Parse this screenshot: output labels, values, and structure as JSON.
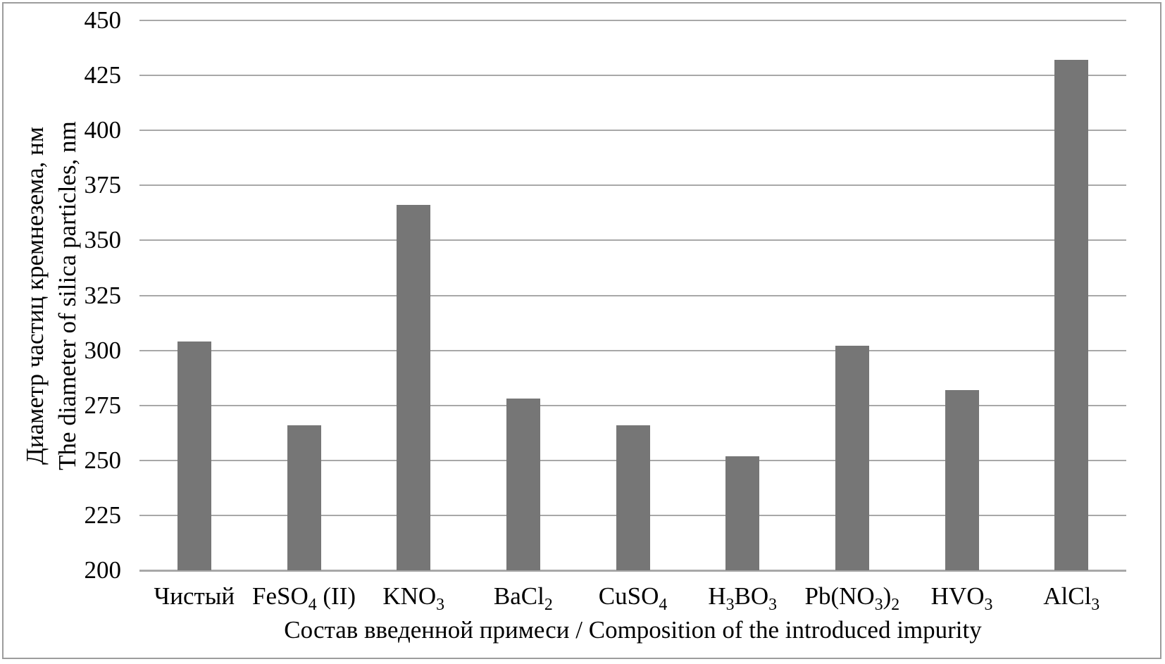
{
  "chart_data": {
    "type": "bar",
    "title": "",
    "categories": [
      "Чистый",
      "FeSO~4~ (II)",
      "KNO~3~",
      "BaCl~2~",
      "CuSO~4~",
      "H~3~BO~3~",
      "Pb(NO~3~)~2~",
      "HVO~3~",
      "AlCl~3~"
    ],
    "categories_plain": [
      "Чистый",
      "FeSO4 (II)",
      "KNO3",
      "BaCl2",
      "CuSO4",
      "H3BO3",
      "Pb(NO3)2",
      "HVO3",
      "AlCl3"
    ],
    "values": [
      304,
      266,
      366,
      278,
      266,
      252,
      302,
      282,
      432
    ],
    "ylabel_line1": "Диаметр частиц кремнезема, нм",
    "ylabel_line2": "The diameter of silica particles, nm",
    "xlabel": "Состав введенной примеси / Composition of the introduced impurity",
    "ylim": [
      200,
      450
    ],
    "ytick_step": 25,
    "yticks": [
      200,
      225,
      250,
      275,
      300,
      325,
      350,
      375,
      400,
      425,
      450
    ],
    "grid": true,
    "legend": "none",
    "colors": {
      "bar": "#767676",
      "gridline": "#a8a8a8",
      "axis_line": "#a8a8a8",
      "frame_border": "#9c9c9c",
      "text": "#000000",
      "background": "#ffffff"
    }
  }
}
